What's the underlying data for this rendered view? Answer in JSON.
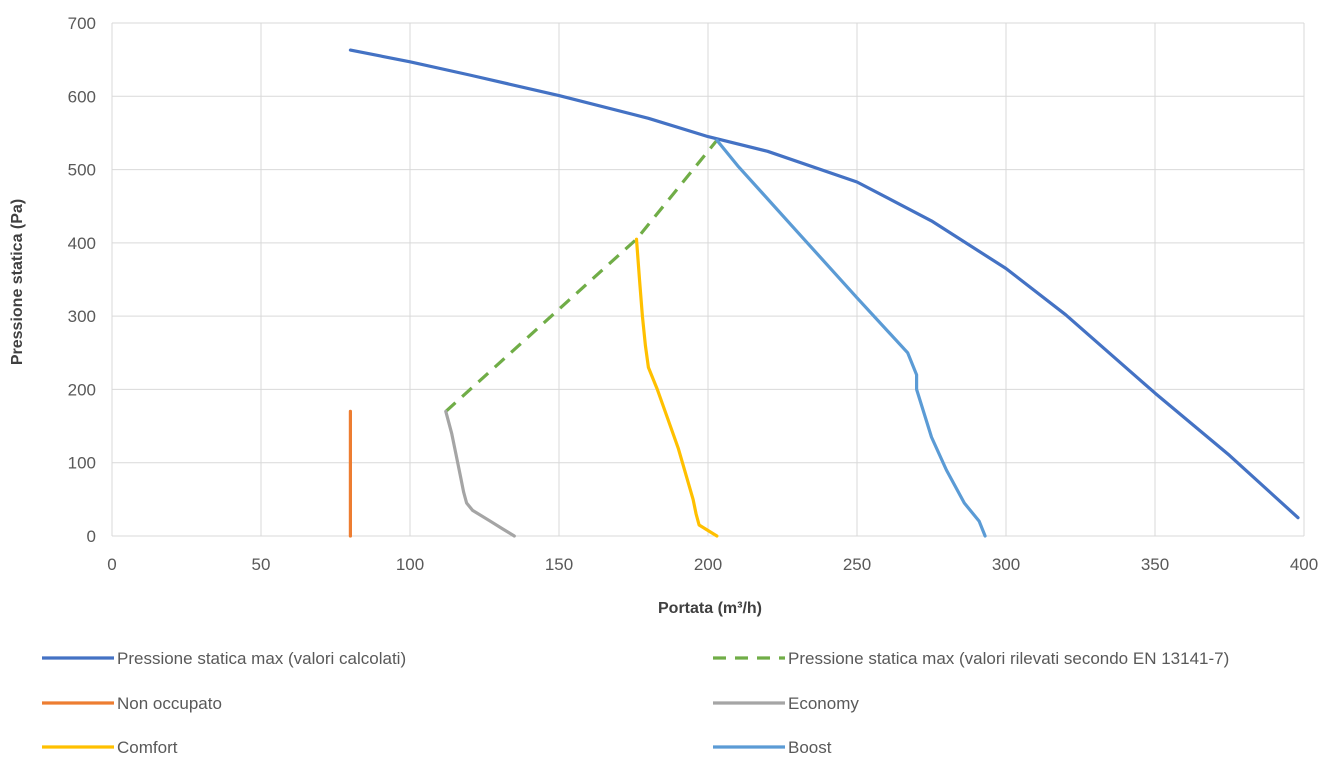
{
  "chart_data": {
    "type": "line",
    "xlabel": "Portata (m³/h)",
    "ylabel": "Pressione statica (Pa)",
    "xlim": [
      0,
      400
    ],
    "ylim": [
      0,
      700
    ],
    "x_ticks": [
      "0",
      "50",
      "100",
      "150",
      "200",
      "250",
      "300",
      "350",
      "400"
    ],
    "y_ticks": [
      "0",
      "100",
      "200",
      "300",
      "400",
      "500",
      "600",
      "700"
    ],
    "grid": true,
    "legend_position": "bottom",
    "series": [
      {
        "name": "Pressione statica max (valori calcolati)",
        "color": "#4472C4",
        "dashed": false,
        "points": [
          [
            80,
            663
          ],
          [
            100,
            647
          ],
          [
            120,
            629
          ],
          [
            150,
            601
          ],
          [
            180,
            570
          ],
          [
            200,
            545
          ],
          [
            220,
            525
          ],
          [
            250,
            483
          ],
          [
            275,
            430
          ],
          [
            300,
            365
          ],
          [
            320,
            302
          ],
          [
            350,
            195
          ],
          [
            375,
            110
          ],
          [
            398,
            25
          ]
        ]
      },
      {
        "name": "Pressione statica max (valori rilevati secondo EN 13141-7)",
        "color": "#70AD47",
        "dashed": true,
        "points": [
          [
            112,
            170
          ],
          [
            176,
            405
          ],
          [
            203,
            540
          ]
        ]
      },
      {
        "name": "Non occupato",
        "color": "#ED7D31",
        "dashed": false,
        "points": [
          [
            80,
            0
          ],
          [
            80,
            170
          ]
        ]
      },
      {
        "name": "Economy",
        "color": "#A5A5A5",
        "dashed": false,
        "points": [
          [
            135,
            0
          ],
          [
            131,
            10
          ],
          [
            127,
            20
          ],
          [
            121,
            35
          ],
          [
            119,
            45
          ],
          [
            118,
            60
          ],
          [
            117,
            80
          ],
          [
            116,
            100
          ],
          [
            115,
            120
          ],
          [
            114,
            140
          ],
          [
            112,
            170
          ]
        ]
      },
      {
        "name": "Comfort",
        "color": "#FFC000",
        "dashed": false,
        "points": [
          [
            203,
            0
          ],
          [
            197,
            15
          ],
          [
            196,
            30
          ],
          [
            195,
            50
          ],
          [
            190,
            120
          ],
          [
            183,
            200
          ],
          [
            180,
            230
          ],
          [
            179,
            260
          ],
          [
            178,
            300
          ],
          [
            177,
            350
          ],
          [
            176,
            405
          ]
        ]
      },
      {
        "name": "Boost",
        "color": "#5B9BD5",
        "dashed": false,
        "points": [
          [
            293,
            0
          ],
          [
            291,
            20
          ],
          [
            286,
            45
          ],
          [
            280,
            90
          ],
          [
            275,
            135
          ],
          [
            270,
            200
          ],
          [
            270,
            220
          ],
          [
            267,
            250
          ],
          [
            250,
            325
          ],
          [
            230,
            415
          ],
          [
            210,
            505
          ],
          [
            203,
            540
          ]
        ]
      }
    ]
  }
}
